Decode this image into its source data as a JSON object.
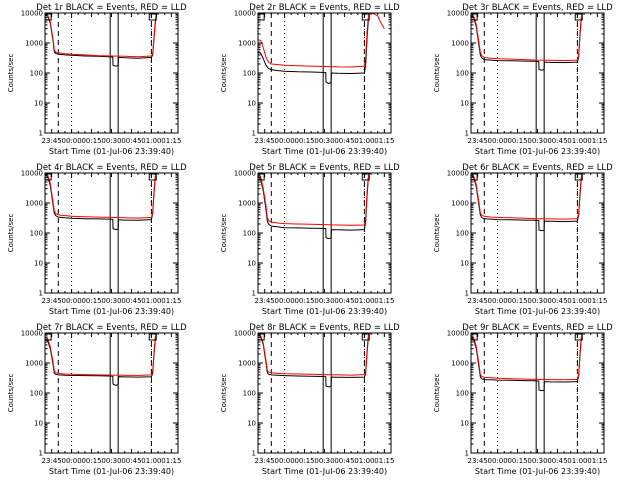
{
  "chart_data": {
    "type": "line",
    "x_tick_labels": [
      "23:45",
      "00:00",
      "00:15",
      "00:30",
      "00:45",
      "01:00",
      "01:15"
    ],
    "x_tick_minutes": [
      -15,
      0,
      15,
      30,
      45,
      60,
      75
    ],
    "x_range_minutes": [
      -20,
      80
    ],
    "ylim": [
      1,
      10000
    ],
    "log_scale_y": true,
    "y_tick_labels": [
      "1",
      "10",
      "100",
      "1000",
      "10000"
    ],
    "y_tick_values": [
      1,
      10,
      100,
      1000,
      10000
    ],
    "ylabel": "Counts/sec",
    "xlabel": "Start Time (01-Jul-06 23:39:40)",
    "colors": {
      "events": "#000000",
      "lld": "#ff0000",
      "axes": "#000000"
    },
    "panels": [
      {
        "title": "Det 1r BLACK = Events, RED = LLD",
        "events": {
          "x": [
            -20,
            -18,
            -16,
            -14,
            -13,
            -12,
            -10,
            -5,
            0,
            10,
            20,
            28,
            31,
            31.1,
            33,
            35,
            35.2,
            40,
            50,
            60,
            61,
            62,
            63,
            64
          ],
          "y": [
            9000,
            8000,
            4500,
            1200,
            500,
            450,
            420,
            400,
            390,
            370,
            360,
            350,
            340,
            180,
            170,
            175,
            330,
            320,
            310,
            330,
            400,
            1500,
            5000,
            9500
          ]
        },
        "lld": {
          "x": [
            -20,
            -18,
            -16,
            -14,
            -13,
            -12,
            -10,
            -5,
            0,
            10,
            20,
            30,
            40,
            50,
            60,
            61,
            62,
            63,
            64
          ],
          "y": [
            9500,
            8500,
            5000,
            1400,
            600,
            500,
            470,
            440,
            420,
            400,
            380,
            370,
            360,
            350,
            370,
            450,
            1800,
            6000,
            10000
          ]
        }
      },
      {
        "title": "Det 2r BLACK = Events, RED = LLD",
        "events": {
          "x": [
            -20,
            -18,
            -16,
            -14,
            -12,
            -10,
            -5,
            0,
            10,
            20,
            28,
            31,
            31.1,
            33,
            35,
            35.2,
            40,
            50,
            60,
            61,
            62,
            63
          ],
          "y": [
            500,
            450,
            300,
            180,
            140,
            130,
            120,
            115,
            110,
            108,
            105,
            102,
            50,
            45,
            48,
            100,
            98,
            96,
            100,
            200,
            1500,
            6000
          ]
        },
        "lld": {
          "x": [
            -20,
            -18,
            -16,
            -14,
            -12,
            -10,
            -5,
            0,
            10,
            20,
            30,
            40,
            50,
            60,
            61,
            62,
            63,
            64,
            67,
            70,
            72,
            75
          ],
          "y": [
            1300,
            1200,
            700,
            330,
            230,
            200,
            190,
            180,
            175,
            170,
            165,
            160,
            158,
            170,
            350,
            2500,
            8000,
            10000,
            9500,
            8000,
            5000,
            3000
          ]
        }
      },
      {
        "title": "Det 3r BLACK = Events, RED = LLD",
        "events": {
          "x": [
            -20,
            -18,
            -16,
            -14,
            -13,
            -12,
            -10,
            -5,
            0,
            10,
            20,
            28,
            31,
            31.1,
            33,
            35,
            35.2,
            40,
            50,
            60,
            61,
            62,
            63
          ],
          "y": [
            8000,
            7000,
            3500,
            800,
            400,
            320,
            280,
            270,
            260,
            255,
            250,
            245,
            240,
            130,
            125,
            128,
            230,
            225,
            222,
            230,
            350,
            2000,
            7000
          ]
        },
        "lld": {
          "x": [
            -20,
            -18,
            -16,
            -14,
            -13,
            -12,
            -10,
            -5,
            0,
            10,
            20,
            30,
            40,
            50,
            60,
            61,
            62,
            63,
            64
          ],
          "y": [
            9000,
            8000,
            4000,
            1000,
            500,
            380,
            330,
            310,
            300,
            290,
            280,
            270,
            265,
            260,
            270,
            400,
            2500,
            8000,
            10000
          ]
        }
      },
      {
        "title": "Det 4r BLACK = Events, RED = LLD",
        "events": {
          "x": [
            -20,
            -18,
            -16,
            -14,
            -13,
            -12,
            -10,
            -5,
            0,
            10,
            20,
            28,
            31,
            31.1,
            33,
            35,
            35.2,
            40,
            50,
            60,
            61,
            62,
            63
          ],
          "y": [
            9000,
            7500,
            3800,
            900,
            450,
            380,
            340,
            320,
            310,
            300,
            295,
            290,
            285,
            140,
            130,
            135,
            275,
            270,
            265,
            280,
            450,
            2200,
            8000
          ]
        },
        "lld": {
          "x": [
            -20,
            -18,
            -16,
            -14,
            -13,
            -12,
            -10,
            -5,
            0,
            10,
            20,
            30,
            40,
            50,
            60,
            61,
            62,
            63,
            64
          ],
          "y": [
            9500,
            8500,
            4500,
            1100,
            550,
            450,
            400,
            380,
            360,
            350,
            340,
            330,
            320,
            315,
            330,
            500,
            2800,
            8500,
            10000
          ]
        }
      },
      {
        "title": "Det 5r BLACK = Events, RED = LLD",
        "events": {
          "x": [
            -20,
            -18,
            -16,
            -14,
            -13,
            -12,
            -10,
            -5,
            0,
            10,
            20,
            28,
            31,
            31.1,
            33,
            35,
            35.2,
            40,
            50,
            60,
            61,
            62,
            63
          ],
          "y": [
            8000,
            6000,
            2500,
            600,
            250,
            200,
            170,
            160,
            150,
            148,
            145,
            142,
            140,
            70,
            65,
            68,
            130,
            128,
            125,
            130,
            250,
            1800,
            7000
          ]
        },
        "lld": {
          "x": [
            -20,
            -18,
            -16,
            -14,
            -13,
            -12,
            -10,
            -5,
            0,
            10,
            20,
            30,
            40,
            50,
            60,
            61,
            62,
            63,
            64
          ],
          "y": [
            9000,
            7500,
            3000,
            800,
            330,
            260,
            230,
            215,
            205,
            200,
            195,
            190,
            185,
            180,
            185,
            350,
            2500,
            8000,
            10000
          ]
        }
      },
      {
        "title": "Det 6r BLACK = Events, RED = LLD",
        "events": {
          "x": [
            -20,
            -18,
            -16,
            -14,
            -13,
            -12,
            -10,
            -5,
            0,
            10,
            20,
            28,
            31,
            31.1,
            33,
            35,
            35.2,
            40,
            50,
            60,
            61,
            62,
            63
          ],
          "y": [
            8500,
            7000,
            3500,
            800,
            400,
            330,
            300,
            290,
            280,
            275,
            270,
            265,
            260,
            125,
            120,
            122,
            250,
            245,
            240,
            250,
            400,
            2000,
            7500
          ]
        },
        "lld": {
          "x": [
            -20,
            -18,
            -16,
            -14,
            -13,
            -12,
            -10,
            -5,
            0,
            10,
            20,
            30,
            40,
            50,
            60,
            61,
            62,
            63,
            64
          ],
          "y": [
            9200,
            8000,
            4000,
            1000,
            480,
            400,
            360,
            340,
            330,
            320,
            310,
            300,
            295,
            290,
            300,
            450,
            2600,
            8200,
            10000
          ]
        }
      },
      {
        "title": "Det 7r BLACK = Events, RED = LLD",
        "events": {
          "x": [
            -20,
            -18,
            -16,
            -14,
            -13,
            -12,
            -10,
            -5,
            0,
            10,
            20,
            28,
            31,
            31.1,
            33,
            35,
            35.2,
            40,
            50,
            60,
            61,
            62,
            63
          ],
          "y": [
            6000,
            5500,
            3000,
            900,
            450,
            420,
            400,
            390,
            385,
            380,
            375,
            370,
            360,
            200,
            180,
            190,
            350,
            345,
            340,
            350,
            450,
            2000,
            7000
          ]
        },
        "lld": {
          "x": [
            -20,
            -18,
            -16,
            -14,
            -13,
            -12,
            -10,
            -5,
            0,
            10,
            20,
            30,
            40,
            50,
            60,
            61,
            62,
            63,
            64
          ],
          "y": [
            7000,
            6500,
            3500,
            1100,
            550,
            480,
            450,
            430,
            420,
            410,
            400,
            395,
            390,
            385,
            400,
            550,
            2500,
            8000,
            10000
          ]
        }
      },
      {
        "title": "Det 8r BLACK = Events, RED = LLD",
        "events": {
          "x": [
            -20,
            -18,
            -16,
            -14,
            -13,
            -12,
            -10,
            -5,
            0,
            10,
            20,
            28,
            31,
            31.1,
            33,
            35,
            35.2,
            40,
            50,
            60,
            61,
            62,
            63
          ],
          "y": [
            8500,
            7500,
            4000,
            1000,
            480,
            420,
            400,
            390,
            380,
            370,
            360,
            355,
            350,
            170,
            160,
            165,
            340,
            335,
            330,
            340,
            450,
            2200,
            7500
          ]
        },
        "lld": {
          "x": [
            -20,
            -18,
            -16,
            -14,
            -13,
            -12,
            -10,
            -5,
            0,
            10,
            20,
            30,
            40,
            50,
            60,
            61,
            62,
            63,
            64
          ],
          "y": [
            9200,
            8200,
            4500,
            1200,
            580,
            500,
            470,
            450,
            440,
            430,
            420,
            410,
            400,
            395,
            410,
            550,
            2800,
            8500,
            10000
          ]
        }
      },
      {
        "title": "Det 9r BLACK = Events, RED = LLD",
        "events": {
          "x": [
            -20,
            -18,
            -16,
            -14,
            -13,
            -12,
            -10,
            -5,
            0,
            10,
            20,
            28,
            31,
            31.1,
            33,
            35,
            35.2,
            40,
            50,
            60,
            61,
            62,
            63
          ],
          "y": [
            7000,
            6000,
            3000,
            700,
            350,
            300,
            280,
            275,
            270,
            265,
            260,
            255,
            250,
            125,
            120,
            122,
            240,
            235,
            232,
            240,
            380,
            2000,
            7000
          ]
        },
        "lld": {
          "x": [
            -20,
            -18,
            -16,
            -14,
            -13,
            -12,
            -10,
            -5,
            0,
            10,
            20,
            30,
            40,
            50,
            60,
            61,
            62,
            63,
            64
          ],
          "y": [
            8000,
            7000,
            3500,
            900,
            420,
            360,
            330,
            320,
            310,
            300,
            290,
            285,
            280,
            275,
            285,
            430,
            2500,
            8000,
            10000
          ]
        }
      }
    ],
    "markers": {
      "dashed_minutes": [
        -10,
        60
      ],
      "dotted_minutes": [
        0,
        60
      ],
      "solid_minutes": [
        29,
        35
      ],
      "box_minutes": [
        -18,
        61
      ]
    }
  }
}
